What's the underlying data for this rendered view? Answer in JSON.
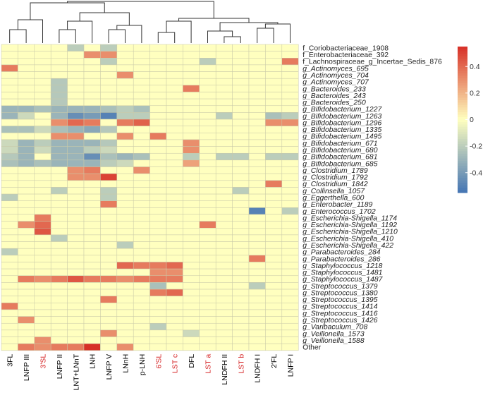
{
  "chart_data": {
    "type": "heatmap",
    "title": "",
    "xlabel": "",
    "ylabel": "",
    "columns": [
      "3FL",
      "LNFP III",
      "3'SL",
      "LNFP II",
      "LNT+LNnT",
      "LNH",
      "LNFP V",
      "LNnH",
      "p-LNH",
      "6'SL",
      "LST c",
      "DFL",
      "LST a",
      "LNDFH II",
      "LST b",
      "LNDFH I",
      "2'FL",
      "LNFP I"
    ],
    "column_label_colors": [
      "#000000",
      "#000000",
      "#d62728",
      "#000000",
      "#000000",
      "#000000",
      "#000000",
      "#000000",
      "#000000",
      "#d62728",
      "#d62728",
      "#000000",
      "#d62728",
      "#000000",
      "#d62728",
      "#000000",
      "#000000",
      "#000000"
    ],
    "rows": [
      "f_Coriobacteriaceae_1908",
      "f_Enterobacteriaceae_392",
      "f_Lachnospiraceae_g_Incertae_Sedis_876",
      "g_Actinomyces_695",
      "g_Actinomyces_704",
      "g_Actinomyces_707",
      "g_Bacteroides_233",
      "g_Bacteroides_243",
      "g_Bacteroides_250",
      "g_Bifidobacterium_1227",
      "g_Bifidobacterium_1263",
      "g_Bifidobacterium_1296",
      "g_Bifidobacterium_1335",
      "g_Bifidobacterium_1495",
      "g_Bifidobacterium_671",
      "g_Bifidobacterium_680",
      "g_Bifidobacterium_681",
      "g_Bifidobacterium_685",
      "g_Clostridium_1789",
      "g_Clostridium_1792",
      "g_Clostridium_1842",
      "g_Collinsella_1057",
      "g_Eggerthella_600",
      "g_Enterobacter_1189",
      "g_Enterococcus_1702",
      "g_Escherichia-Shigella_1174",
      "g_Escherichia-Shigella_1192",
      "g_Escherichia-Shigella_1210",
      "g_Escherichia-Shigella_410",
      "g_Escherichia-Shigella_422",
      "g_Parabacteroides_284",
      "g_Parabacteroides_286",
      "g_Staphylococcus_1218",
      "g_Staphylococcus_1481",
      "g_Staphylococcus_1487",
      "g_Streptococcus_1379",
      "g_Streptococcus_1380",
      "g_Streptococcus_1395",
      "g_Streptococcus_1414",
      "g_Streptococcus_1416",
      "g_Streptococcus_1426",
      "g_Varibaculum_708",
      "g_Veillonella_1573",
      "g_Veillonella_1588",
      "Other"
    ],
    "values": [
      [
        0,
        0,
        0,
        0,
        -0.2,
        0,
        -0.2,
        0,
        0,
        0,
        0,
        0,
        0,
        0,
        0,
        0,
        0,
        0
      ],
      [
        0,
        0,
        0,
        0,
        0,
        0.3,
        0.3,
        0,
        0,
        0,
        0,
        0,
        0,
        0,
        0,
        0,
        0,
        0
      ],
      [
        0,
        0,
        0,
        0,
        0,
        0,
        -0.2,
        0,
        0,
        0,
        0,
        0,
        -0.2,
        0,
        0,
        0,
        0,
        0.35
      ],
      [
        0.35,
        0,
        0,
        0,
        0,
        0,
        0,
        0,
        0,
        0,
        0,
        0,
        0,
        0,
        0,
        0,
        0,
        0
      ],
      [
        0,
        0,
        0,
        0,
        0,
        0,
        0,
        0.3,
        0,
        0,
        0,
        0,
        0,
        0,
        0,
        0,
        0,
        0
      ],
      [
        0,
        0,
        0,
        -0.22,
        0,
        0,
        0,
        0,
        0,
        0,
        0,
        0,
        0,
        0,
        0,
        0,
        0,
        0
      ],
      [
        0,
        0,
        0,
        -0.22,
        0,
        0,
        0,
        0,
        0,
        0,
        0,
        0.35,
        0,
        0,
        0,
        0,
        0,
        0
      ],
      [
        0,
        0,
        0,
        -0.22,
        0,
        0,
        0,
        0,
        0,
        0,
        0,
        0,
        0,
        0,
        0,
        0,
        0,
        0
      ],
      [
        0,
        0,
        0,
        -0.22,
        0,
        0,
        0,
        0,
        0,
        0,
        0,
        0,
        0,
        0,
        0,
        0,
        0,
        0
      ],
      [
        -0.3,
        -0.3,
        -0.25,
        -0.3,
        -0.3,
        -0.3,
        -0.25,
        -0.2,
        -0.25,
        0,
        0,
        0,
        0,
        0,
        0,
        0,
        0,
        0
      ],
      [
        -0.3,
        -0.15,
        0,
        -0.3,
        -0.45,
        -0.4,
        -0.5,
        -0.2,
        -0.2,
        0,
        0,
        0,
        0,
        -0.2,
        0,
        0,
        -0.25,
        -0.2
      ],
      [
        0,
        0,
        0,
        0.3,
        0.4,
        0.35,
        0,
        0.35,
        0.42,
        0,
        0,
        0,
        0,
        0,
        0,
        0,
        0.3,
        0.3
      ],
      [
        -0.25,
        -0.25,
        -0.15,
        -0.25,
        -0.3,
        -0.35,
        -0.22,
        0,
        0,
        0,
        0,
        0,
        0,
        0,
        0,
        0,
        0,
        0
      ],
      [
        0,
        0,
        0,
        0.3,
        0.3,
        0,
        0,
        0.3,
        0,
        0.35,
        0,
        0,
        0,
        0,
        0,
        0,
        0,
        0
      ],
      [
        -0.15,
        -0.3,
        -0.2,
        -0.3,
        -0.3,
        -0.3,
        -0.22,
        0,
        0,
        0,
        0,
        0.3,
        0,
        0,
        0,
        0,
        0,
        0
      ],
      [
        -0.15,
        -0.3,
        -0.15,
        -0.3,
        -0.3,
        -0.2,
        -0.15,
        0,
        0,
        0,
        0,
        0.3,
        0,
        0,
        0,
        0,
        0,
        0
      ],
      [
        -0.22,
        -0.3,
        0,
        -0.3,
        -0.3,
        -0.45,
        -0.25,
        -0.3,
        -0.25,
        0,
        0,
        -0.2,
        0,
        -0.2,
        -0.2,
        0,
        -0.2,
        -0.2
      ],
      [
        -0.25,
        -0.3,
        -0.25,
        -0.3,
        -0.3,
        -0.3,
        -0.2,
        -0.15,
        0,
        0,
        0,
        0.25,
        0,
        0,
        0,
        0,
        0,
        0
      ],
      [
        0,
        0,
        0,
        0,
        0.3,
        0.35,
        0,
        0,
        0.3,
        0,
        0,
        0,
        0,
        0,
        0,
        0,
        0,
        0
      ],
      [
        0,
        0,
        0,
        0,
        0.3,
        0.3,
        0.5,
        0,
        0,
        0,
        0,
        0,
        0,
        0,
        0,
        0,
        0,
        0
      ],
      [
        0,
        0,
        0,
        0,
        0,
        0,
        0,
        0,
        0,
        0,
        0,
        0,
        0,
        0,
        0,
        0,
        0.35,
        0
      ],
      [
        0,
        0,
        0,
        -0.2,
        0,
        0,
        -0.2,
        0,
        0,
        0,
        0,
        0,
        0,
        0,
        -0.2,
        0,
        0,
        0
      ],
      [
        -0.2,
        0,
        0,
        0,
        0,
        0,
        -0.2,
        0,
        0,
        0,
        0,
        0,
        0,
        0,
        0,
        0,
        0,
        0
      ],
      [
        0,
        0,
        0,
        0,
        0,
        0,
        0.35,
        0,
        0,
        0,
        0,
        0,
        0,
        0,
        0,
        0,
        0,
        0
      ],
      [
        0,
        0,
        0,
        0,
        0,
        0,
        0,
        0,
        0,
        0,
        0,
        0,
        0,
        0,
        0,
        -0.5,
        0,
        -0.2
      ],
      [
        0,
        0,
        0.35,
        0,
        0,
        0,
        0,
        0,
        0,
        0,
        0,
        0,
        0,
        0,
        0,
        0,
        0,
        0
      ],
      [
        0,
        0.3,
        0.4,
        0,
        0,
        0,
        0,
        0,
        0,
        0,
        0,
        0,
        0.35,
        0,
        0,
        0,
        0,
        0
      ],
      [
        0,
        0,
        0.45,
        0,
        0,
        0,
        0,
        0,
        0,
        0,
        0,
        0,
        0,
        0,
        0,
        0,
        0,
        0
      ],
      [
        0,
        0,
        0,
        -0.2,
        0,
        0,
        0,
        0,
        0,
        0,
        0,
        0,
        0,
        0,
        0,
        0,
        0,
        0
      ],
      [
        0,
        0,
        0,
        0,
        0,
        0,
        0,
        -0.2,
        0,
        0,
        0,
        0,
        0,
        0,
        0,
        0,
        0,
        0
      ],
      [
        -0.2,
        0,
        0,
        0,
        0,
        0,
        0,
        0,
        0,
        0,
        0,
        0,
        0,
        0,
        0,
        0,
        0,
        0
      ],
      [
        0,
        0,
        0,
        0,
        0,
        0,
        0,
        0,
        0,
        0,
        0,
        0,
        0,
        0,
        0,
        0.35,
        0,
        0
      ],
      [
        0,
        0,
        0,
        0,
        0,
        0,
        0,
        0.4,
        0.35,
        0.35,
        0.4,
        0,
        0,
        0,
        0,
        0,
        0,
        0
      ],
      [
        0,
        0,
        0,
        0,
        0,
        0,
        0,
        0,
        0,
        0.3,
        0.3,
        0,
        0,
        0,
        0,
        0,
        0,
        0
      ],
      [
        0,
        0.35,
        0.3,
        0.35,
        0.45,
        0.35,
        0.35,
        0.3,
        0.35,
        0.35,
        0.35,
        0,
        0,
        0,
        0,
        0,
        0,
        0
      ],
      [
        0,
        0,
        0,
        0,
        0,
        0,
        0,
        0,
        0,
        -0.25,
        0,
        0,
        0,
        0,
        0,
        -0.2,
        0,
        0
      ],
      [
        0,
        0,
        0,
        0,
        0,
        0,
        0,
        0,
        0,
        0.35,
        0.4,
        0,
        0,
        0,
        0,
        0,
        0,
        0
      ],
      [
        0,
        0,
        0,
        0,
        0,
        0,
        0.35,
        0,
        0,
        0,
        0,
        0,
        0,
        0,
        0,
        0,
        0,
        0
      ],
      [
        0.35,
        0,
        0,
        0,
        0,
        0,
        0,
        0,
        0,
        0,
        0,
        0,
        0,
        0,
        0,
        0,
        0,
        0
      ],
      [
        0,
        0,
        0,
        0,
        0,
        0,
        0,
        0,
        0,
        0,
        0,
        0,
        0,
        0,
        0,
        0,
        0,
        0
      ],
      [
        0,
        0.3,
        0,
        0,
        0,
        0,
        0,
        0,
        0,
        0,
        0,
        0,
        0,
        0,
        0,
        0,
        0,
        0
      ],
      [
        0,
        0,
        0,
        0,
        0,
        0,
        0,
        0,
        0,
        -0.2,
        0,
        0,
        0,
        0,
        0,
        0,
        0,
        0
      ],
      [
        0,
        0,
        0,
        0,
        0,
        0,
        0.3,
        0,
        0,
        0,
        0,
        -0.15,
        0,
        0,
        0,
        0,
        0,
        0
      ],
      [
        0,
        0,
        0.3,
        0,
        0,
        0,
        0,
        0,
        0,
        0,
        0,
        0,
        0,
        0,
        0,
        0,
        0,
        0
      ],
      [
        0,
        0.35,
        0.3,
        0.35,
        0.35,
        0.55,
        0,
        0.3,
        0,
        0,
        0,
        0,
        0,
        0,
        0,
        0,
        0,
        0
      ]
    ],
    "colorbar": {
      "ticks": [
        0.4,
        0.2,
        0,
        -0.2,
        -0.4
      ],
      "tick_labels": [
        "0.4",
        "0.2",
        "0",
        "-0.2",
        "-0.4"
      ],
      "range": [
        -0.55,
        0.55
      ],
      "colors": {
        "low": "#4575b4",
        "mid": "#ffffbf",
        "high": "#d73027"
      }
    },
    "column_dendrogram": true
  }
}
